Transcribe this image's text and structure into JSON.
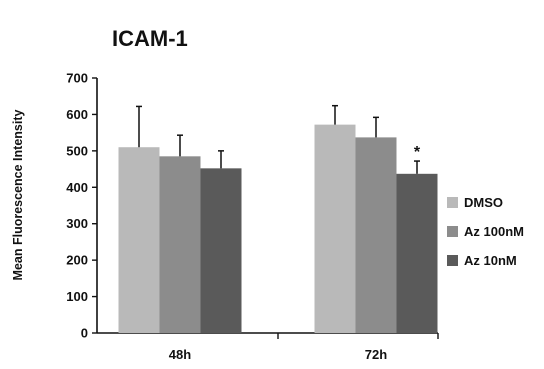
{
  "chart_data": {
    "type": "bar",
    "title": "ICAM-1",
    "xlabel": "",
    "ylabel": "Mean Fluorescence Intensity",
    "ylim": [
      0,
      700
    ],
    "yticks": [
      0,
      100,
      200,
      300,
      400,
      500,
      600,
      700
    ],
    "categories": [
      "48h",
      "72h"
    ],
    "series": [
      {
        "name": "DMSO",
        "color": "#b9b9b9",
        "values": [
          510,
          572
        ],
        "errors": [
          112,
          52
        ]
      },
      {
        "name": "Az 100nM",
        "color": "#8c8c8c",
        "values": [
          485,
          537
        ],
        "errors": [
          58,
          55
        ]
      },
      {
        "name": "Az 10nM",
        "color": "#5a5a5a",
        "values": [
          452,
          437
        ],
        "errors": [
          48,
          35
        ]
      }
    ],
    "legend_position": "right",
    "grid": false,
    "annotations": [
      {
        "text": "*",
        "category": "72h",
        "series": "Az 10nM"
      }
    ]
  }
}
